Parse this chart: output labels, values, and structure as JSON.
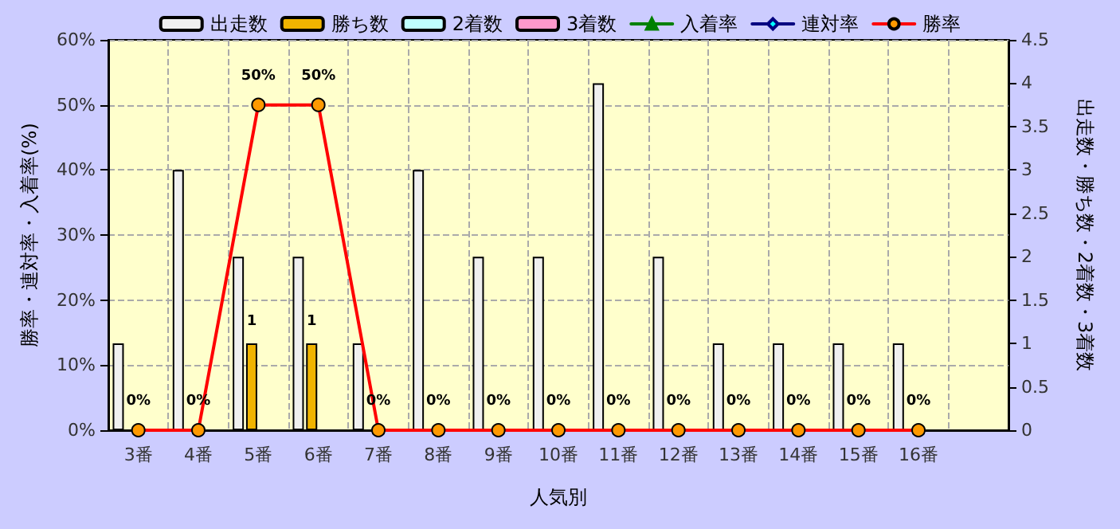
{
  "chart_data": {
    "type": "bar",
    "xlabel": "人気別",
    "ylabel": "勝率・連対率・入着率(%)",
    "y2label": "出走数・勝ち数・2着数・3着数",
    "categories": [
      "3番",
      "4番",
      "5番",
      "6番",
      "7番",
      "8番",
      "9番",
      "10番",
      "11番",
      "12番",
      "13番",
      "14番",
      "15番",
      "16番",
      null
    ],
    "series": [
      {
        "name": "出走数",
        "axis": "y2",
        "color": "#f0f0f0",
        "values": [
          1,
          3,
          2,
          2,
          1,
          3,
          2,
          2,
          4,
          2,
          1,
          1,
          1,
          1,
          null
        ]
      },
      {
        "name": "勝ち数",
        "axis": "y2",
        "color": "#f0b400",
        "values": [
          null,
          null,
          1,
          1,
          null,
          null,
          null,
          null,
          null,
          null,
          null,
          null,
          null,
          null,
          null
        ],
        "value_labels": [
          null,
          null,
          "1",
          "1",
          null,
          null,
          null,
          null,
          null,
          null,
          null,
          null,
          null,
          null,
          null
        ]
      },
      {
        "name": "2着数",
        "axis": "y2",
        "color": "#c0ffff",
        "values": [
          null,
          null,
          null,
          null,
          null,
          null,
          null,
          null,
          null,
          null,
          null,
          null,
          null,
          null,
          null
        ]
      },
      {
        "name": "3着数",
        "axis": "y2",
        "color": "#ff99cc",
        "values": [
          null,
          null,
          null,
          null,
          null,
          null,
          null,
          null,
          null,
          null,
          null,
          null,
          null,
          null,
          null
        ]
      },
      {
        "name": "入着率",
        "type": "line",
        "axis": "y",
        "color": "#008000",
        "marker": "triangle",
        "values": [
          null,
          null,
          null,
          null,
          null,
          null,
          null,
          null,
          null,
          null,
          null,
          null,
          null,
          null,
          null
        ]
      },
      {
        "name": "連対率",
        "type": "line",
        "axis": "y",
        "color": "#000080",
        "marker": "diamond",
        "values": [
          null,
          null,
          null,
          null,
          null,
          null,
          null,
          null,
          null,
          null,
          null,
          null,
          null,
          null,
          null
        ]
      },
      {
        "name": "勝率",
        "type": "line",
        "axis": "y",
        "color": "#ff0000",
        "marker": "circle",
        "values": [
          0,
          0,
          50,
          50,
          0,
          0,
          0,
          0,
          0,
          0,
          0,
          0,
          0,
          0,
          null
        ],
        "value_labels": [
          "0%",
          "0%",
          "50%",
          "50%",
          "0%",
          "0%",
          "0%",
          "0%",
          "0%",
          "0%",
          "0%",
          "0%",
          "0%",
          "0%",
          null
        ]
      }
    ],
    "ylim": [
      0,
      60
    ],
    "yticks": [
      {
        "value": 0,
        "label": "0%"
      },
      {
        "value": 10,
        "label": "10%"
      },
      {
        "value": 20,
        "label": "20%"
      },
      {
        "value": 30,
        "label": "30%"
      },
      {
        "value": 40,
        "label": "40%"
      },
      {
        "value": 50,
        "label": "50%"
      },
      {
        "value": 60,
        "label": "60%"
      }
    ],
    "y2lim": [
      0,
      4.5
    ],
    "y2ticks": [
      0,
      0.5,
      1,
      1.5,
      2,
      2.5,
      3,
      3.5,
      4,
      4.5
    ],
    "grid": true,
    "legend": "top",
    "line_style": "solid"
  }
}
